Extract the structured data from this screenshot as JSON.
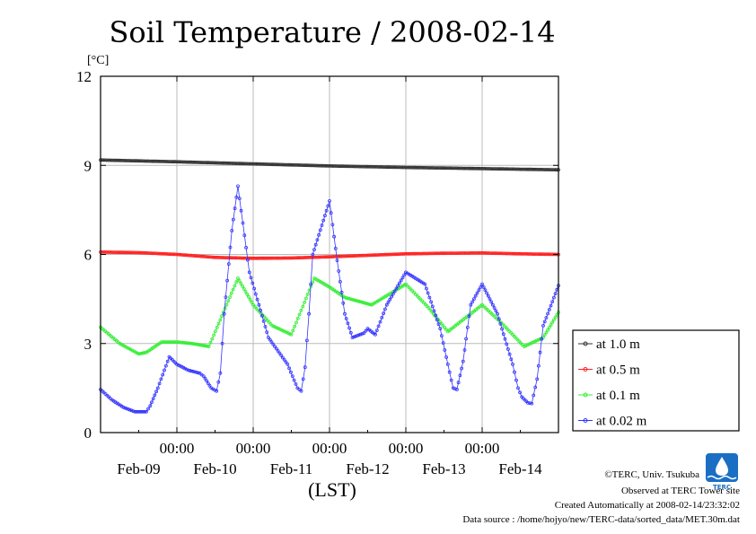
{
  "colors": {
    "background": "#ffffff",
    "grid": "#bbbbbb",
    "axes": "#000000",
    "series": [
      "#333333",
      "#ff2020",
      "#33ee33",
      "#3333ff"
    ],
    "logo": "#1a6fc4"
  },
  "credits": {
    "copyright": "©TERC, Univ. Tsukuba",
    "observed": "Observed at TERC Tower site",
    "created": "Created Automatically at 2008-02-14/23:32:02",
    "source": "Data source : /home/hojyo/new/TERC-data/sorted_data/MET.30m.dat",
    "logo_text": "TERC"
  },
  "chart_data": {
    "type": "line",
    "title": "Soil Temperature / 2008-02-14",
    "ylabel": "[°C]",
    "xlabel": "(LST)",
    "ylim": [
      0,
      12
    ],
    "yticks": [
      "0",
      "3",
      "6",
      "9",
      "12"
    ],
    "xlim": [
      0,
      6
    ],
    "x_unit": "days since 2008-02-08 12:00 LST",
    "x_time_labels": [
      "00:00",
      "00:00",
      "00:00",
      "00:00",
      "00:00"
    ],
    "x_time_positions": [
      1,
      2,
      3,
      4,
      5
    ],
    "x_date_labels": [
      "Feb-09",
      "Feb-10",
      "Feb-11",
      "Feb-12",
      "Feb-13",
      "Feb-14"
    ],
    "x_date_positions": [
      0.5,
      1.5,
      2.5,
      3.5,
      4.5,
      5.5
    ],
    "grid": true,
    "legend_position": "right",
    "series": [
      {
        "name": "at 1.0 m",
        "marker": "circle",
        "x": [
          0,
          1,
          2,
          3,
          4,
          5,
          6
        ],
        "y": [
          9.18,
          9.12,
          9.05,
          8.98,
          8.93,
          8.89,
          8.85
        ]
      },
      {
        "name": "at 0.5 m",
        "marker": "circle",
        "x": [
          0,
          0.5,
          1,
          1.5,
          2,
          2.5,
          3,
          3.5,
          4,
          4.5,
          5,
          5.5,
          6
        ],
        "y": [
          6.08,
          6.06,
          6.0,
          5.9,
          5.87,
          5.88,
          5.92,
          5.97,
          6.02,
          6.04,
          6.05,
          6.02,
          6.0
        ]
      },
      {
        "name": "at 0.1 m",
        "marker": "circle",
        "x": [
          0,
          0.25,
          0.5,
          0.6,
          0.8,
          1.0,
          1.2,
          1.42,
          1.8,
          2.0,
          2.25,
          2.5,
          2.8,
          3.0,
          3.2,
          3.55,
          4.0,
          4.3,
          4.55,
          5.0,
          5.25,
          5.55,
          5.8,
          6.0
        ],
        "y": [
          3.55,
          3.0,
          2.65,
          2.7,
          3.05,
          3.05,
          3.0,
          2.9,
          5.2,
          4.3,
          3.6,
          3.3,
          5.2,
          4.9,
          4.55,
          4.3,
          5.0,
          4.2,
          3.4,
          4.3,
          3.7,
          2.9,
          3.2,
          4.05
        ]
      },
      {
        "name": "at 0.02 m",
        "marker": "circle",
        "x": [
          0,
          0.15,
          0.3,
          0.45,
          0.6,
          0.65,
          0.75,
          0.9,
          1.0,
          1.15,
          1.3,
          1.35,
          1.45,
          1.52,
          1.57,
          1.62,
          1.72,
          1.8,
          1.95,
          2.2,
          2.45,
          2.58,
          2.63,
          2.68,
          2.73,
          2.78,
          3.0,
          3.1,
          3.2,
          3.3,
          3.45,
          3.5,
          3.6,
          3.75,
          4.0,
          4.25,
          4.45,
          4.55,
          4.62,
          4.67,
          4.75,
          4.85,
          5.0,
          5.2,
          5.4,
          5.47,
          5.52,
          5.6,
          5.65,
          5.72,
          5.8,
          6.0
        ],
        "y": [
          1.45,
          1.1,
          0.85,
          0.7,
          0.7,
          0.9,
          1.5,
          2.55,
          2.3,
          2.1,
          2.0,
          1.9,
          1.5,
          1.4,
          2.0,
          4.0,
          6.8,
          8.3,
          5.4,
          3.2,
          2.3,
          1.5,
          1.4,
          2.2,
          4.0,
          6.0,
          7.8,
          5.8,
          4.0,
          3.2,
          3.35,
          3.5,
          3.3,
          4.3,
          5.4,
          5.0,
          3.5,
          2.3,
          1.5,
          1.45,
          2.4,
          4.3,
          5.0,
          4.0,
          2.3,
          1.5,
          1.2,
          1.0,
          0.98,
          1.8,
          3.6,
          4.95
        ]
      }
    ]
  }
}
